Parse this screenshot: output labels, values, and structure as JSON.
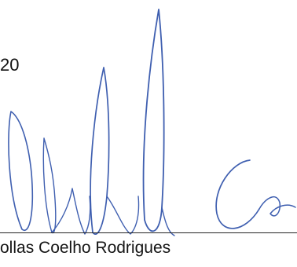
{
  "document": {
    "year_fragment": "20",
    "signer_name": "ollas Coelho Rodrigues"
  },
  "signature": {
    "ink_color": "#3f5fb0"
  }
}
